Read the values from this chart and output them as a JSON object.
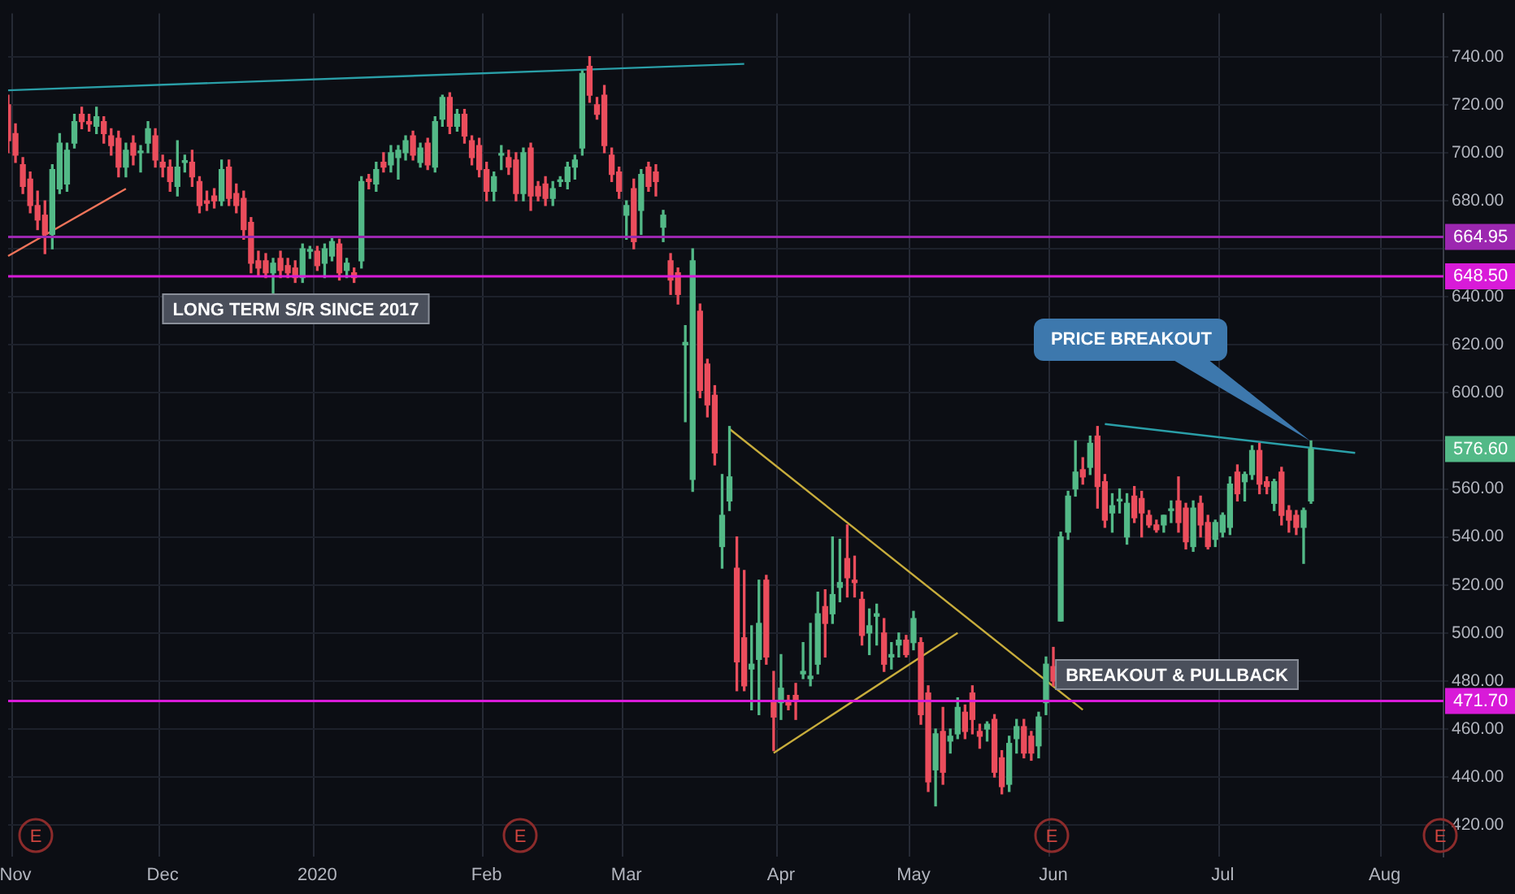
{
  "chart_data": {
    "type": "candlestick",
    "categories": [
      null,
      "Nov",
      null,
      null,
      null,
      null,
      null,
      null,
      null,
      null,
      null,
      null,
      null,
      null,
      null,
      null,
      null,
      null,
      null,
      null,
      null,
      "Dec",
      null,
      null,
      null,
      null,
      null,
      null,
      null,
      null,
      null,
      null,
      null,
      null,
      null,
      null,
      null,
      null,
      null,
      null,
      null,
      null,
      "2020",
      null,
      null,
      null,
      null,
      null,
      null,
      null,
      null,
      null,
      null,
      null,
      null,
      null,
      null,
      null,
      null,
      null,
      null,
      null,
      null,
      null,
      null,
      "Feb",
      null,
      null,
      null,
      null,
      null,
      null,
      null,
      null,
      null,
      null,
      null,
      null,
      null,
      null,
      null,
      null,
      null,
      null,
      "Mar",
      null,
      null,
      null,
      null,
      null,
      null,
      null,
      null,
      null,
      null,
      null,
      null,
      null,
      null,
      null,
      null,
      null,
      null,
      null,
      null,
      "Apr",
      null,
      null,
      null,
      null,
      null,
      null,
      null,
      null,
      null,
      null,
      null,
      null,
      null,
      null,
      null,
      null,
      null,
      "May",
      null,
      null,
      null,
      null,
      null,
      null,
      null,
      null,
      null,
      null,
      null,
      null,
      null,
      null,
      null,
      null,
      null,
      null,
      "Jun",
      null,
      null,
      null,
      null,
      null,
      null,
      null,
      null,
      null,
      null,
      null,
      null,
      null,
      null,
      null,
      null,
      null,
      null,
      null,
      null,
      null,
      null,
      "Jul",
      null,
      null,
      null,
      null,
      null,
      null,
      null,
      null,
      null,
      null,
      null,
      null,
      null,
      null,
      null,
      null,
      null,
      null,
      null,
      null,
      null,
      "Aug",
      null,
      null,
      null,
      null,
      null,
      null,
      null,
      null
    ],
    "ohlc": [
      [
        720,
        724,
        700,
        705
      ],
      [
        708,
        712,
        696,
        699
      ],
      [
        695,
        698,
        683,
        686
      ],
      [
        689,
        692,
        675,
        678
      ],
      [
        678,
        684,
        668,
        672
      ],
      [
        674,
        680,
        658,
        666
      ],
      [
        666,
        695,
        660,
        693
      ],
      [
        685,
        708,
        683,
        704
      ],
      [
        687,
        704,
        684,
        701
      ],
      [
        704,
        716,
        702,
        713
      ],
      [
        716,
        719,
        710,
        713
      ],
      [
        713,
        716,
        709,
        712
      ],
      [
        711,
        719,
        708,
        715
      ],
      [
        713,
        715,
        704,
        708
      ],
      [
        707,
        710,
        699,
        703
      ],
      [
        706,
        709,
        690,
        694
      ],
      [
        694,
        704,
        690,
        701
      ],
      [
        704,
        707,
        695,
        699
      ],
      [
        700,
        703,
        692,
        700
      ],
      [
        704,
        713,
        700,
        710
      ],
      [
        707,
        710,
        694,
        697
      ],
      [
        696,
        699,
        690,
        694
      ],
      [
        694,
        697,
        684,
        688
      ],
      [
        686,
        705,
        682,
        694
      ],
      [
        696,
        699,
        692,
        696
      ],
      [
        696,
        701,
        686,
        690
      ],
      [
        688,
        690,
        675,
        678
      ],
      [
        680,
        684,
        676,
        679
      ],
      [
        682,
        685,
        677,
        680
      ],
      [
        680,
        697,
        678,
        693
      ],
      [
        694,
        697,
        678,
        681
      ],
      [
        683,
        687,
        675,
        678
      ],
      [
        681,
        684,
        664,
        668
      ],
      [
        671,
        673,
        650,
        654
      ],
      [
        655,
        659,
        649,
        652
      ],
      [
        655,
        658,
        648,
        650
      ],
      [
        650,
        656,
        640,
        654
      ],
      [
        656,
        659,
        648,
        651
      ],
      [
        653,
        656,
        648,
        650
      ],
      [
        652,
        655,
        646,
        648
      ],
      [
        648,
        662,
        646,
        660
      ],
      [
        659,
        661,
        656,
        659
      ],
      [
        659,
        661,
        651,
        653
      ],
      [
        654,
        662,
        648,
        660
      ],
      [
        657,
        665,
        655,
        663
      ],
      [
        662,
        664,
        647,
        650
      ],
      [
        651,
        656,
        648,
        654
      ],
      [
        650,
        652,
        646,
        648
      ],
      [
        655,
        690,
        652,
        688
      ],
      [
        689,
        691,
        685,
        688
      ],
      [
        687,
        696,
        684,
        693
      ],
      [
        696,
        700,
        692,
        694
      ],
      [
        695,
        703,
        692,
        700
      ],
      [
        698,
        703,
        689,
        701
      ],
      [
        700,
        707,
        697,
        705
      ],
      [
        707,
        709,
        697,
        699
      ],
      [
        696,
        704,
        694,
        702
      ],
      [
        704,
        706,
        693,
        695
      ],
      [
        694,
        715,
        692,
        713
      ],
      [
        714,
        724,
        711,
        723
      ],
      [
        723,
        725,
        708,
        711
      ],
      [
        711,
        718,
        709,
        716
      ],
      [
        716,
        718,
        704,
        707
      ],
      [
        705,
        707,
        695,
        698
      ],
      [
        703,
        706,
        690,
        693
      ],
      [
        693,
        696,
        680,
        684
      ],
      [
        684,
        692,
        680,
        690
      ],
      [
        699,
        703,
        693,
        699
      ],
      [
        698,
        701,
        691,
        694
      ],
      [
        697,
        700,
        680,
        683
      ],
      [
        683,
        702,
        680,
        700
      ],
      [
        702,
        704,
        676,
        682
      ],
      [
        686,
        688,
        680,
        682
      ],
      [
        687,
        690,
        678,
        681
      ],
      [
        681,
        688,
        678,
        685
      ],
      [
        688,
        690,
        686,
        688
      ],
      [
        688,
        696,
        685,
        694
      ],
      [
        694,
        699,
        689,
        697
      ],
      [
        702,
        734,
        699,
        733
      ],
      [
        736,
        740,
        721,
        724
      ],
      [
        720,
        723,
        714,
        716
      ],
      [
        724,
        728,
        700,
        703
      ],
      [
        699,
        702,
        688,
        691
      ],
      [
        692,
        694,
        681,
        684
      ],
      [
        674,
        680,
        664,
        678
      ],
      [
        685,
        689,
        660,
        663
      ],
      [
        676,
        693,
        666,
        691
      ],
      [
        694,
        696,
        684,
        686
      ],
      [
        692,
        695,
        682,
        688
      ],
      [
        669,
        676,
        663,
        674
      ],
      [
        655,
        658,
        641,
        647
      ],
      [
        650,
        652,
        637,
        641
      ],
      [
        620,
        628,
        588,
        621
      ],
      [
        564,
        660,
        559,
        655
      ],
      [
        634,
        637,
        598,
        601
      ],
      [
        612,
        614,
        590,
        595
      ],
      [
        599,
        603,
        570,
        575
      ],
      [
        536,
        566,
        527,
        549
      ],
      [
        555,
        586,
        551,
        565
      ],
      [
        527,
        540,
        476,
        488
      ],
      [
        498,
        526,
        476,
        478
      ],
      [
        485,
        503,
        468,
        487
      ],
      [
        489,
        522,
        466,
        504
      ],
      [
        522,
        524,
        487,
        490
      ],
      [
        471,
        484,
        451,
        465
      ],
      [
        471,
        491,
        464,
        477
      ],
      [
        472,
        474,
        468,
        470
      ],
      [
        474,
        479,
        464,
        472
      ],
      [
        483,
        496,
        481,
        484
      ],
      [
        481,
        504,
        478,
        482
      ],
      [
        487,
        517,
        483,
        508
      ],
      [
        511,
        518,
        490,
        504
      ],
      [
        508,
        540,
        504,
        516
      ],
      [
        519,
        539,
        513,
        521
      ],
      [
        531,
        545,
        515,
        523
      ],
      [
        522,
        532,
        515,
        521
      ],
      [
        514,
        517,
        495,
        499
      ],
      [
        500,
        510,
        491,
        503
      ],
      [
        507,
        512,
        495,
        508
      ],
      [
        500,
        506,
        484,
        487
      ],
      [
        490,
        496,
        485,
        491
      ],
      [
        495,
        500,
        490,
        497
      ],
      [
        497,
        499,
        490,
        491
      ],
      [
        496,
        509,
        493,
        506
      ],
      [
        496,
        498,
        462,
        466
      ],
      [
        475,
        478,
        434,
        438
      ],
      [
        443,
        460,
        428,
        458
      ],
      [
        459,
        469,
        437,
        442
      ],
      [
        455,
        460,
        450,
        457
      ],
      [
        458,
        473,
        456,
        469
      ],
      [
        467,
        470,
        456,
        459
      ],
      [
        475,
        478,
        458,
        464
      ],
      [
        459,
        462,
        452,
        457
      ],
      [
        460,
        463,
        455,
        462
      ],
      [
        464,
        466,
        440,
        442
      ],
      [
        448,
        451,
        433,
        436
      ],
      [
        437,
        457,
        434,
        454
      ],
      [
        456,
        464,
        450,
        461
      ],
      [
        461,
        464,
        448,
        450
      ],
      [
        457,
        459,
        447,
        450
      ],
      [
        453,
        467,
        448,
        465
      ],
      [
        471,
        490,
        466,
        487
      ],
      [
        486,
        494,
        478,
        480
      ],
      [
        505,
        542,
        505,
        540
      ],
      [
        542,
        559,
        539,
        557
      ],
      [
        560,
        580,
        557,
        567
      ],
      [
        568,
        573,
        562,
        565
      ],
      [
        569,
        582,
        566,
        579
      ],
      [
        582,
        586,
        552,
        561
      ],
      [
        563,
        566,
        544,
        547
      ],
      [
        550,
        558,
        542,
        553
      ],
      [
        555,
        560,
        550,
        555
      ],
      [
        540,
        558,
        537,
        554
      ],
      [
        557,
        561,
        546,
        548
      ],
      [
        556,
        559,
        540,
        550
      ],
      [
        549,
        551,
        544,
        545
      ],
      [
        545,
        547,
        542,
        543
      ],
      [
        545,
        549,
        542,
        549
      ],
      [
        551,
        555,
        546,
        551
      ],
      [
        555,
        565,
        542,
        546
      ],
      [
        552,
        554,
        535,
        538
      ],
      [
        536,
        555,
        534,
        552
      ],
      [
        554,
        557,
        540,
        545
      ],
      [
        546,
        549,
        535,
        536
      ],
      [
        539,
        547,
        536,
        546
      ],
      [
        542,
        550,
        540,
        549
      ],
      [
        544,
        565,
        541,
        562
      ],
      [
        567,
        570,
        555,
        558
      ],
      [
        563,
        567,
        555,
        566
      ],
      [
        566,
        578,
        564,
        576
      ],
      [
        576,
        579,
        558,
        562
      ],
      [
        563,
        565,
        558,
        561
      ],
      [
        554,
        564,
        551,
        563
      ],
      [
        567,
        569,
        545,
        549
      ],
      [
        551,
        553,
        542,
        547
      ],
      [
        549,
        551,
        541,
        544
      ],
      [
        544,
        552,
        529,
        551
      ],
      [
        555,
        580,
        554,
        576.6
      ],
      null,
      null,
      null,
      null,
      null,
      null,
      null,
      null,
      null,
      null,
      null,
      null,
      null,
      null,
      null,
      null,
      null,
      null
    ],
    "series": [
      {
        "type": "line",
        "color": "#2a9fa8",
        "values": [
          726,
          null,
          null,
          null,
          null,
          null,
          null,
          null,
          null,
          null,
          null,
          null,
          null,
          null,
          null,
          null,
          null,
          null,
          null,
          null,
          null,
          null,
          null,
          null,
          null,
          null,
          null,
          null,
          null,
          null,
          null,
          null,
          null,
          null,
          null,
          null,
          null,
          null,
          null,
          null,
          null,
          null,
          null,
          null,
          null,
          null,
          null,
          null,
          null,
          null,
          null,
          null,
          null,
          null,
          null,
          null,
          null,
          null,
          null,
          null,
          null,
          null,
          null,
          null,
          null,
          null,
          null,
          null,
          null,
          null,
          null,
          null,
          null,
          null,
          null,
          null,
          null,
          null,
          null,
          null,
          null,
          null,
          null,
          null,
          null,
          null,
          null,
          null,
          null,
          null,
          null,
          null,
          null,
          null,
          null,
          null,
          null,
          null,
          null,
          null,
          737,
          null,
          null,
          null,
          null,
          null,
          null,
          null,
          null,
          null,
          null,
          null,
          null,
          null,
          null,
          null,
          null,
          null,
          null,
          null,
          null,
          null,
          null,
          null,
          null,
          null,
          null,
          null,
          null,
          null,
          null,
          null,
          null,
          null,
          null,
          null,
          null,
          null,
          null,
          null,
          null,
          null,
          null,
          null,
          null,
          null,
          null,
          null,
          null,
          null,
          null,
          null,
          null,
          null,
          null,
          null,
          null,
          null,
          null,
          null,
          null,
          null,
          null,
          null,
          null,
          null,
          null,
          null,
          null,
          null,
          null,
          null,
          null,
          null,
          null,
          null,
          null,
          null,
          null,
          null,
          null,
          null,
          null,
          null,
          null,
          null,
          null,
          null,
          null,
          null,
          null,
          null,
          null,
          null,
          null,
          null
        ]
      },
      {
        "type": "line",
        "color": "#f0745a",
        "values": [
          657,
          null,
          null,
          null,
          null,
          null,
          null,
          null,
          null,
          null,
          null,
          null,
          null,
          null,
          null,
          null,
          685,
          null,
          null,
          null,
          null,
          null,
          null,
          null,
          null,
          null,
          null,
          null,
          null,
          null,
          null,
          null,
          null,
          null,
          null,
          null,
          null,
          null,
          null,
          null,
          null,
          null,
          null,
          null,
          null,
          null,
          null,
          null,
          null,
          null,
          null,
          null,
          null,
          null,
          null,
          null,
          null,
          null,
          null,
          null,
          null,
          null,
          null,
          null,
          null,
          null,
          null,
          null,
          null,
          null,
          null,
          null,
          null,
          null,
          null,
          null,
          null,
          null,
          null,
          null,
          null,
          null,
          null,
          null,
          null,
          null,
          null,
          null,
          null,
          null,
          null,
          null,
          null,
          null,
          null,
          null,
          null,
          null,
          null,
          null,
          null,
          null,
          null,
          null,
          null,
          null,
          null,
          null,
          null,
          null,
          null,
          null,
          null,
          null,
          null,
          null,
          null,
          null,
          null,
          null,
          null,
          null,
          null,
          null,
          null,
          null,
          null,
          null,
          null,
          null,
          null,
          null,
          null,
          null,
          null,
          null,
          null,
          null,
          null,
          null,
          null,
          null,
          null,
          null,
          null,
          null,
          null,
          null,
          null,
          null,
          null,
          null,
          null,
          null,
          null,
          null,
          null,
          null,
          null,
          null,
          null,
          null,
          null,
          null,
          null,
          null,
          null,
          null,
          null,
          null,
          null,
          null,
          null,
          null,
          null,
          null,
          null,
          null,
          null,
          null,
          null,
          null,
          null,
          null,
          null,
          null,
          null,
          null,
          null,
          null,
          null,
          null,
          null,
          null,
          null,
          null
        ]
      },
      {
        "type": "line",
        "color": "#c8ad3c",
        "values": [
          null,
          null,
          null,
          null,
          null,
          null,
          null,
          null,
          null,
          null,
          null,
          null,
          null,
          null,
          null,
          null,
          null,
          null,
          null,
          null,
          null,
          null,
          null,
          null,
          null,
          null,
          null,
          null,
          null,
          null,
          null,
          null,
          null,
          null,
          null,
          null,
          null,
          null,
          null,
          null,
          null,
          null,
          null,
          null,
          null,
          null,
          null,
          null,
          null,
          null,
          null,
          null,
          null,
          null,
          null,
          null,
          null,
          null,
          null,
          null,
          null,
          null,
          null,
          null,
          null,
          null,
          null,
          null,
          null,
          null,
          null,
          null,
          null,
          null,
          null,
          null,
          null,
          null,
          null,
          null,
          null,
          null,
          null,
          null,
          null,
          null,
          null,
          null,
          null,
          null,
          null,
          null,
          null,
          null,
          null,
          null,
          null,
          null,
          585,
          null,
          null,
          null,
          null,
          null,
          null,
          null,
          null,
          null,
          null,
          null,
          null,
          null,
          null,
          null,
          null,
          null,
          null,
          null,
          null,
          null,
          null,
          null,
          null,
          null,
          null,
          null,
          null,
          null,
          null,
          null,
          null,
          null,
          null,
          null,
          null,
          null,
          null,
          null,
          null,
          null,
          null,
          null,
          null,
          null,
          null,
          null,
          468,
          null,
          null,
          null,
          null,
          null,
          null,
          null,
          null,
          null,
          null,
          null,
          null,
          null,
          null,
          null,
          null,
          null,
          null,
          null,
          null,
          null,
          null,
          null,
          null,
          null,
          null,
          null,
          null,
          null,
          null,
          null,
          null,
          null,
          null,
          null,
          null,
          null,
          null,
          null,
          null,
          null,
          null,
          null,
          null,
          null,
          null,
          null,
          null,
          null
        ]
      },
      {
        "type": "line",
        "color": "#c8ad3c",
        "values": [
          null,
          null,
          null,
          null,
          null,
          null,
          null,
          null,
          null,
          null,
          null,
          null,
          null,
          null,
          null,
          null,
          null,
          null,
          null,
          null,
          null,
          null,
          null,
          null,
          null,
          null,
          null,
          null,
          null,
          null,
          null,
          null,
          null,
          null,
          null,
          null,
          null,
          null,
          null,
          null,
          null,
          null,
          null,
          null,
          null,
          null,
          null,
          null,
          null,
          null,
          null,
          null,
          null,
          null,
          null,
          null,
          null,
          null,
          null,
          null,
          null,
          null,
          null,
          null,
          null,
          null,
          null,
          null,
          null,
          null,
          null,
          null,
          null,
          null,
          null,
          null,
          null,
          null,
          null,
          null,
          null,
          null,
          null,
          null,
          null,
          null,
          null,
          null,
          null,
          null,
          null,
          null,
          null,
          null,
          null,
          null,
          null,
          null,
          null,
          null,
          null,
          null,
          null,
          null,
          450,
          null,
          null,
          null,
          null,
          null,
          null,
          null,
          null,
          null,
          null,
          null,
          null,
          null,
          null,
          null,
          null,
          null,
          null,
          null,
          null,
          null,
          null,
          null,
          null,
          500,
          null,
          null,
          null,
          null,
          null,
          null,
          null,
          null,
          null,
          null,
          null,
          null,
          null,
          null,
          null,
          null,
          null,
          null,
          null,
          null,
          null,
          null,
          null,
          null,
          null,
          null,
          null,
          null,
          null,
          null,
          null,
          null,
          null,
          null,
          null,
          null,
          null,
          null,
          null,
          null,
          null,
          null,
          null,
          null,
          null,
          null,
          null,
          null,
          null,
          null,
          null,
          null,
          null,
          null,
          null,
          null,
          null,
          null,
          null,
          null,
          null,
          null,
          null,
          null,
          null,
          null
        ]
      },
      {
        "type": "line",
        "color": "#2a9fa8",
        "values": [
          null,
          null,
          null,
          null,
          null,
          null,
          null,
          null,
          null,
          null,
          null,
          null,
          null,
          null,
          null,
          null,
          null,
          null,
          null,
          null,
          null,
          null,
          null,
          null,
          null,
          null,
          null,
          null,
          null,
          null,
          null,
          null,
          null,
          null,
          null,
          null,
          null,
          null,
          null,
          null,
          null,
          null,
          null,
          null,
          null,
          null,
          null,
          null,
          null,
          null,
          null,
          null,
          null,
          null,
          null,
          null,
          null,
          null,
          null,
          null,
          null,
          null,
          null,
          null,
          null,
          null,
          null,
          null,
          null,
          null,
          null,
          null,
          null,
          null,
          null,
          null,
          null,
          null,
          null,
          null,
          null,
          null,
          null,
          null,
          null,
          null,
          null,
          null,
          null,
          null,
          null,
          null,
          null,
          null,
          null,
          null,
          null,
          null,
          null,
          null,
          null,
          null,
          null,
          null,
          null,
          null,
          null,
          null,
          null,
          null,
          null,
          null,
          null,
          null,
          null,
          null,
          null,
          null,
          null,
          null,
          null,
          null,
          null,
          null,
          null,
          null,
          null,
          null,
          null,
          null,
          null,
          null,
          null,
          null,
          null,
          null,
          null,
          null,
          null,
          null,
          null,
          null,
          null,
          null,
          null,
          null,
          null,
          null,
          null,
          587,
          null,
          null,
          null,
          null,
          null,
          null,
          null,
          null,
          null,
          null,
          null,
          null,
          null,
          null,
          null,
          null,
          null,
          null,
          null,
          null,
          null,
          null,
          null,
          null,
          null,
          null,
          null,
          null,
          null,
          null,
          null,
          null,
          null,
          575,
          null,
          null,
          null,
          null,
          null,
          null,
          null,
          null,
          null,
          null,
          null,
          null
        ]
      }
    ],
    "ref_lines": [
      {
        "axis": "y",
        "value": 664.95,
        "label": "664.95",
        "color": "#9c27b0"
      },
      {
        "axis": "y",
        "value": 648.5,
        "label": "648.50",
        "color": "#d81bd8"
      },
      {
        "axis": "y",
        "value": 471.7,
        "label": "471.70",
        "color": "#d81bd8"
      }
    ],
    "annotations": [
      "LONG TERM S/R SINCE 2017",
      "PRICE BREAKOUT",
      "BREAKOUT & PULLBACK",
      "E",
      "E",
      "E",
      "E",
      {
        "text": "576.60",
        "y": 576.6
      }
    ],
    "ylim": [
      407,
      758
    ],
    "yticks": [
      {
        "value": 420,
        "label": "420.00"
      },
      {
        "value": 440,
        "label": "440.00"
      },
      {
        "value": 460,
        "label": "460.00"
      },
      {
        "value": 480,
        "label": "480.00"
      },
      {
        "value": 500,
        "label": "500.00"
      },
      {
        "value": 520,
        "label": "520.00"
      },
      {
        "value": 540,
        "label": "540.00"
      },
      {
        "value": 560,
        "label": "560.00"
      },
      {
        "value": 580,
        "label": null
      },
      {
        "value": 600,
        "label": "600.00"
      },
      {
        "value": 620,
        "label": "620.00"
      },
      {
        "value": 640,
        "label": "640.00"
      },
      {
        "value": 660,
        "label": null
      },
      {
        "value": 680,
        "label": "680.00"
      },
      {
        "value": 700,
        "label": "700.00"
      },
      {
        "value": 720,
        "label": "720.00"
      },
      {
        "value": 740,
        "label": "740.00"
      }
    ],
    "grid": true,
    "legend": false
  }
}
